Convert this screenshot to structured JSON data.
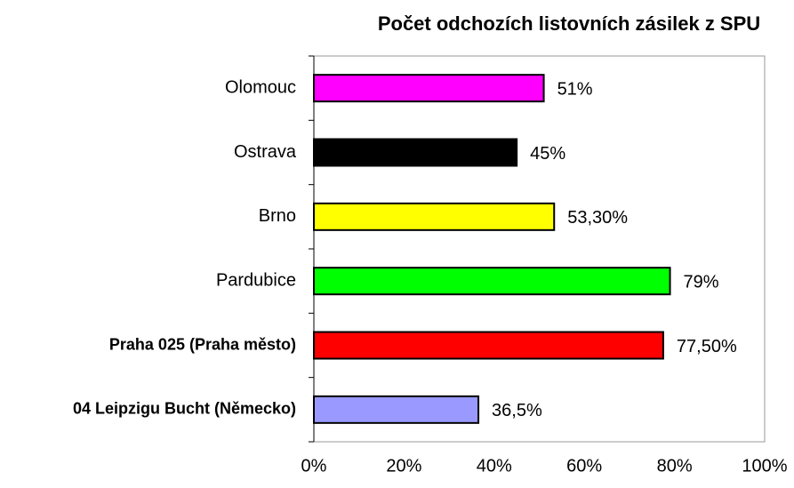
{
  "chart_data": {
    "type": "barh",
    "title": "Počet odchozích listovních zásilek z SPU",
    "categories": [
      "Olomouc",
      "Ostrava",
      "Brno",
      "Pardubice",
      "Praha 025 (Praha město)",
      "04 Leipzigu Bucht (Německo)"
    ],
    "category_bold": [
      false,
      false,
      false,
      false,
      true,
      true
    ],
    "values": [
      51,
      45,
      53.3,
      79,
      77.5,
      36.5
    ],
    "value_labels": [
      "51%",
      "45%",
      "53,30%",
      "79%",
      "77,50%",
      "36,5%"
    ],
    "colors": [
      "#ff00ff",
      "#000000",
      "#ffff00",
      "#00ff00",
      "#ff0000",
      "#9999ff"
    ],
    "xlim": [
      0,
      100
    ],
    "xticks": [
      {
        "value": 0,
        "label": "0%"
      },
      {
        "value": 20,
        "label": "20%"
      },
      {
        "value": 40,
        "label": "40%"
      },
      {
        "value": 60,
        "label": "60%"
      },
      {
        "value": 80,
        "label": "80%"
      },
      {
        "value": 100,
        "label": "100%"
      }
    ],
    "grid": false
  }
}
